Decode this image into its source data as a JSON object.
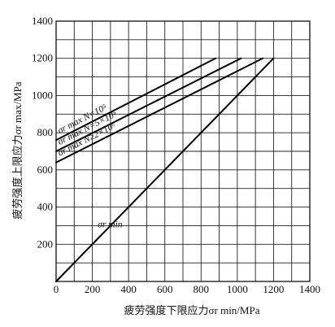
{
  "chart_data": {
    "type": "line",
    "xlabel": "疲劳强度下限应力σr min/MPa",
    "ylabel": "疲劳强度上限应力σr max/MPa",
    "xlim": [
      0,
      1400
    ],
    "ylim": [
      0,
      1400
    ],
    "xticks": [
      "0",
      "200",
      "400",
      "600",
      "800",
      "1000",
      "1200",
      "1400"
    ],
    "yticks": [
      "200",
      "400",
      "600",
      "800",
      "1000",
      "1200",
      "1400"
    ],
    "grid": true,
    "series": [
      {
        "name": "σr max N=10⁵",
        "x": [
          0,
          880
        ],
        "y": [
          760,
          1200
        ]
      },
      {
        "name": "σr max N=5×10⁵",
        "x": [
          0,
          1020
        ],
        "y": [
          700,
          1200
        ]
      },
      {
        "name": "σr max N≥2×10⁶",
        "x": [
          0,
          1140
        ],
        "y": [
          640,
          1200
        ]
      },
      {
        "name": "σr min",
        "x": [
          0,
          1200
        ],
        "y": [
          0,
          1200
        ]
      }
    ]
  }
}
